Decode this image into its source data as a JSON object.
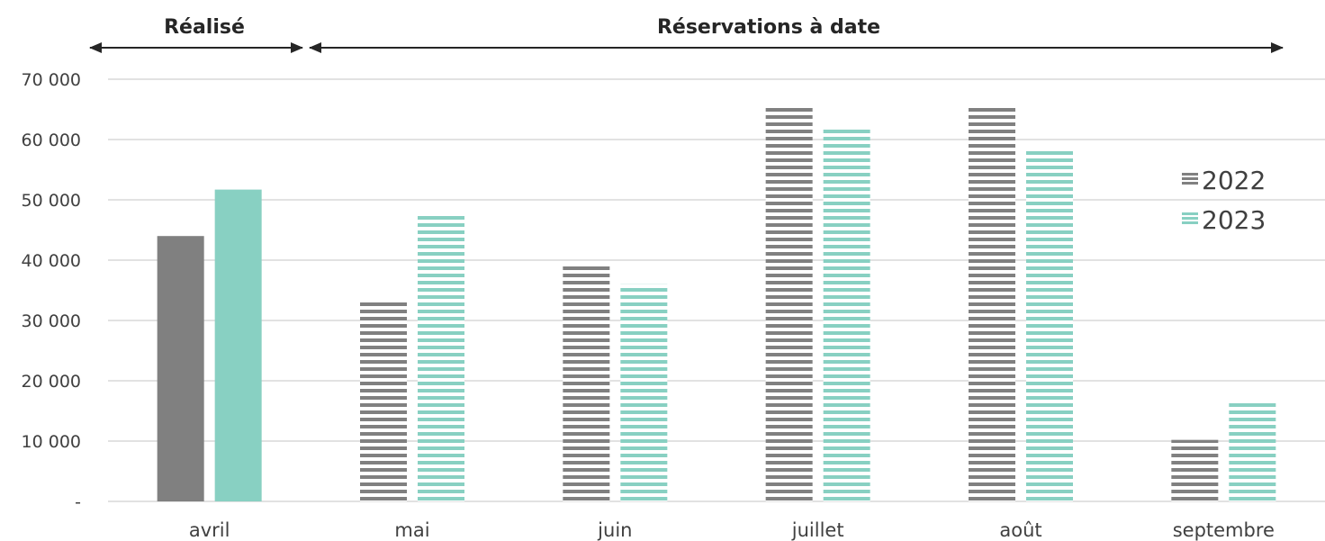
{
  "chart_data": {
    "type": "bar",
    "title": "",
    "xlabel": "",
    "ylabel": "",
    "categories": [
      "avril",
      "mai",
      "juin",
      "juillet",
      "août",
      "septembre"
    ],
    "series": [
      {
        "name": "2022",
        "color": "#808080",
        "values": [
          44000,
          33000,
          39500,
          65800,
          65800,
          10200
        ]
      },
      {
        "name": "2023",
        "color": "#88d0c2",
        "values": [
          51700,
          47500,
          36000,
          62000,
          58200,
          16500
        ]
      }
    ],
    "ylim": [
      0,
      70000
    ],
    "yticks": [
      0,
      10000,
      20000,
      30000,
      40000,
      50000,
      60000,
      70000
    ],
    "ytick_labels": [
      "-",
      "10 000",
      "20 000",
      "30 000",
      "40 000",
      "50 000",
      "60 000",
      "70 000"
    ],
    "grid": true,
    "legend_position": "right",
    "fill_styles": {
      "actual_categories": [
        "avril"
      ],
      "actual": "solid",
      "booked": "horizontal-stripes"
    },
    "periods": [
      {
        "label": "Réalisé",
        "categories": [
          "avril"
        ]
      },
      {
        "label": "Réservations à date",
        "categories": [
          "mai",
          "juin",
          "juillet",
          "août",
          "septembre"
        ]
      }
    ]
  }
}
